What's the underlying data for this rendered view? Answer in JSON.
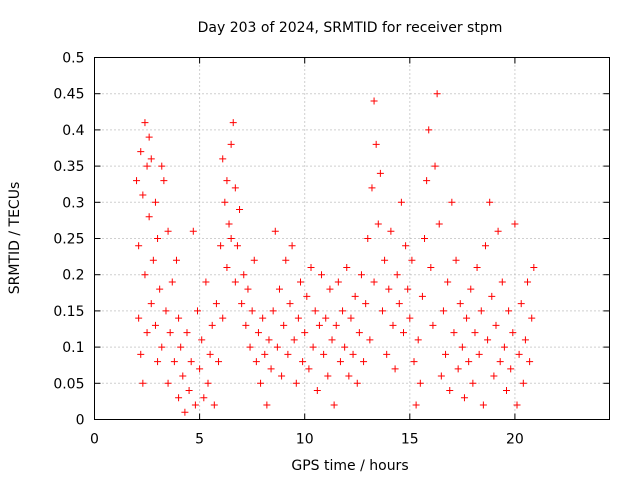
{
  "chart_data": {
    "type": "scatter",
    "title": "Day 203 of 2024, SRMTID for receiver stpm",
    "xlabel": "GPS time / hours",
    "ylabel": "SRMTID / TECUs",
    "xlim": [
      0,
      24.5
    ],
    "ylim": [
      0,
      0.5
    ],
    "x_ticks": [
      0,
      5,
      10,
      15,
      20
    ],
    "y_ticks": [
      0,
      0.05,
      0.1,
      0.15,
      0.2,
      0.25,
      0.3,
      0.35,
      0.4,
      0.45,
      0.5
    ],
    "x_tick_labels": [
      "0",
      "5",
      "10",
      "15",
      "20"
    ],
    "y_tick_labels": [
      "0",
      "0.05",
      "0.1",
      "0.15",
      "0.2",
      "0.25",
      "0.3",
      "0.35",
      "0.4",
      "0.45",
      "0.5"
    ],
    "grid": true,
    "marker": "+",
    "marker_color": "#ff0000",
    "series": [
      {
        "name": "SRMTID",
        "points": [
          [
            2.0,
            0.33
          ],
          [
            2.1,
            0.14
          ],
          [
            2.1,
            0.24
          ],
          [
            2.2,
            0.37
          ],
          [
            2.2,
            0.09
          ],
          [
            2.3,
            0.31
          ],
          [
            2.3,
            0.05
          ],
          [
            2.4,
            0.41
          ],
          [
            2.4,
            0.2
          ],
          [
            2.5,
            0.35
          ],
          [
            2.5,
            0.12
          ],
          [
            2.6,
            0.28
          ],
          [
            2.6,
            0.39
          ],
          [
            2.7,
            0.16
          ],
          [
            2.7,
            0.36
          ],
          [
            2.8,
            0.22
          ],
          [
            2.9,
            0.13
          ],
          [
            2.9,
            0.3
          ],
          [
            3.0,
            0.08
          ],
          [
            3.0,
            0.25
          ],
          [
            3.1,
            0.18
          ],
          [
            3.2,
            0.35
          ],
          [
            3.2,
            0.1
          ],
          [
            3.3,
            0.33
          ],
          [
            3.4,
            0.15
          ],
          [
            3.5,
            0.05
          ],
          [
            3.5,
            0.26
          ],
          [
            3.6,
            0.12
          ],
          [
            3.7,
            0.19
          ],
          [
            3.8,
            0.08
          ],
          [
            3.9,
            0.22
          ],
          [
            4.0,
            0.14
          ],
          [
            4.0,
            0.03
          ],
          [
            4.1,
            0.1
          ],
          [
            4.2,
            0.06
          ],
          [
            4.3,
            0.01
          ],
          [
            4.4,
            0.12
          ],
          [
            4.5,
            0.04
          ],
          [
            4.6,
            0.08
          ],
          [
            4.7,
            0.26
          ],
          [
            4.8,
            0.02
          ],
          [
            4.9,
            0.15
          ],
          [
            5.0,
            0.07
          ],
          [
            5.1,
            0.11
          ],
          [
            5.2,
            0.03
          ],
          [
            5.3,
            0.19
          ],
          [
            5.4,
            0.05
          ],
          [
            5.5,
            0.09
          ],
          [
            5.6,
            0.13
          ],
          [
            5.7,
            0.02
          ],
          [
            5.8,
            0.16
          ],
          [
            5.9,
            0.08
          ],
          [
            6.0,
            0.24
          ],
          [
            6.1,
            0.14
          ],
          [
            6.1,
            0.36
          ],
          [
            6.2,
            0.3
          ],
          [
            6.3,
            0.21
          ],
          [
            6.3,
            0.33
          ],
          [
            6.4,
            0.27
          ],
          [
            6.5,
            0.38
          ],
          [
            6.5,
            0.25
          ],
          [
            6.6,
            0.41
          ],
          [
            6.7,
            0.32
          ],
          [
            6.7,
            0.19
          ],
          [
            6.8,
            0.24
          ],
          [
            6.9,
            0.29
          ],
          [
            7.0,
            0.16
          ],
          [
            7.1,
            0.2
          ],
          [
            7.2,
            0.13
          ],
          [
            7.3,
            0.18
          ],
          [
            7.4,
            0.1
          ],
          [
            7.5,
            0.15
          ],
          [
            7.6,
            0.22
          ],
          [
            7.7,
            0.08
          ],
          [
            7.8,
            0.12
          ],
          [
            7.9,
            0.05
          ],
          [
            8.0,
            0.14
          ],
          [
            8.1,
            0.09
          ],
          [
            8.2,
            0.02
          ],
          [
            8.3,
            0.11
          ],
          [
            8.4,
            0.07
          ],
          [
            8.5,
            0.15
          ],
          [
            8.6,
            0.26
          ],
          [
            8.7,
            0.1
          ],
          [
            8.8,
            0.18
          ],
          [
            8.9,
            0.06
          ],
          [
            9.0,
            0.13
          ],
          [
            9.1,
            0.22
          ],
          [
            9.2,
            0.09
          ],
          [
            9.3,
            0.16
          ],
          [
            9.4,
            0.24
          ],
          [
            9.5,
            0.11
          ],
          [
            9.6,
            0.05
          ],
          [
            9.7,
            0.14
          ],
          [
            9.8,
            0.19
          ],
          [
            9.9,
            0.08
          ],
          [
            10.0,
            0.12
          ],
          [
            10.1,
            0.17
          ],
          [
            10.2,
            0.07
          ],
          [
            10.3,
            0.21
          ],
          [
            10.4,
            0.1
          ],
          [
            10.5,
            0.15
          ],
          [
            10.6,
            0.04
          ],
          [
            10.7,
            0.13
          ],
          [
            10.8,
            0.2
          ],
          [
            10.9,
            0.09
          ],
          [
            11.0,
            0.14
          ],
          [
            11.1,
            0.06
          ],
          [
            11.2,
            0.18
          ],
          [
            11.3,
            0.11
          ],
          [
            11.4,
            0.02
          ],
          [
            11.5,
            0.13
          ],
          [
            11.6,
            0.19
          ],
          [
            11.7,
            0.08
          ],
          [
            11.8,
            0.15
          ],
          [
            11.9,
            0.1
          ],
          [
            12.0,
            0.21
          ],
          [
            12.1,
            0.06
          ],
          [
            12.2,
            0.14
          ],
          [
            12.3,
            0.09
          ],
          [
            12.4,
            0.17
          ],
          [
            12.5,
            0.05
          ],
          [
            12.6,
            0.12
          ],
          [
            12.7,
            0.2
          ],
          [
            12.8,
            0.08
          ],
          [
            12.9,
            0.16
          ],
          [
            13.0,
            0.25
          ],
          [
            13.1,
            0.11
          ],
          [
            13.2,
            0.32
          ],
          [
            13.3,
            0.44
          ],
          [
            13.3,
            0.19
          ],
          [
            13.4,
            0.38
          ],
          [
            13.5,
            0.27
          ],
          [
            13.6,
            0.34
          ],
          [
            13.7,
            0.15
          ],
          [
            13.8,
            0.22
          ],
          [
            13.9,
            0.09
          ],
          [
            14.0,
            0.18
          ],
          [
            14.1,
            0.26
          ],
          [
            14.2,
            0.13
          ],
          [
            14.3,
            0.07
          ],
          [
            14.4,
            0.2
          ],
          [
            14.5,
            0.16
          ],
          [
            14.6,
            0.3
          ],
          [
            14.7,
            0.12
          ],
          [
            14.8,
            0.24
          ],
          [
            14.9,
            0.18
          ],
          [
            15.0,
            0.14
          ],
          [
            15.1,
            0.22
          ],
          [
            15.2,
            0.08
          ],
          [
            15.3,
            0.02
          ],
          [
            15.4,
            0.11
          ],
          [
            15.5,
            0.05
          ],
          [
            15.6,
            0.17
          ],
          [
            15.7,
            0.25
          ],
          [
            15.8,
            0.33
          ],
          [
            15.9,
            0.4
          ],
          [
            16.0,
            0.21
          ],
          [
            16.1,
            0.13
          ],
          [
            16.2,
            0.35
          ],
          [
            16.3,
            0.45
          ],
          [
            16.4,
            0.27
          ],
          [
            16.5,
            0.06
          ],
          [
            16.6,
            0.15
          ],
          [
            16.7,
            0.09
          ],
          [
            16.8,
            0.19
          ],
          [
            16.9,
            0.04
          ],
          [
            17.0,
            0.3
          ],
          [
            17.1,
            0.12
          ],
          [
            17.2,
            0.22
          ],
          [
            17.3,
            0.07
          ],
          [
            17.4,
            0.16
          ],
          [
            17.5,
            0.1
          ],
          [
            17.6,
            0.03
          ],
          [
            17.7,
            0.14
          ],
          [
            17.8,
            0.08
          ],
          [
            17.9,
            0.18
          ],
          [
            18.0,
            0.05
          ],
          [
            18.1,
            0.12
          ],
          [
            18.2,
            0.21
          ],
          [
            18.3,
            0.09
          ],
          [
            18.4,
            0.15
          ],
          [
            18.5,
            0.02
          ],
          [
            18.6,
            0.24
          ],
          [
            18.7,
            0.11
          ],
          [
            18.8,
            0.3
          ],
          [
            18.9,
            0.17
          ],
          [
            19.0,
            0.06
          ],
          [
            19.1,
            0.13
          ],
          [
            19.2,
            0.26
          ],
          [
            19.3,
            0.08
          ],
          [
            19.4,
            0.19
          ],
          [
            19.5,
            0.1
          ],
          [
            19.6,
            0.04
          ],
          [
            19.7,
            0.15
          ],
          [
            19.8,
            0.07
          ],
          [
            19.9,
            0.12
          ],
          [
            20.0,
            0.27
          ],
          [
            20.1,
            0.02
          ],
          [
            20.2,
            0.09
          ],
          [
            20.3,
            0.16
          ],
          [
            20.4,
            0.05
          ],
          [
            20.5,
            0.11
          ],
          [
            20.6,
            0.19
          ],
          [
            20.7,
            0.08
          ],
          [
            20.8,
            0.14
          ],
          [
            20.9,
            0.21
          ]
        ]
      }
    ]
  }
}
